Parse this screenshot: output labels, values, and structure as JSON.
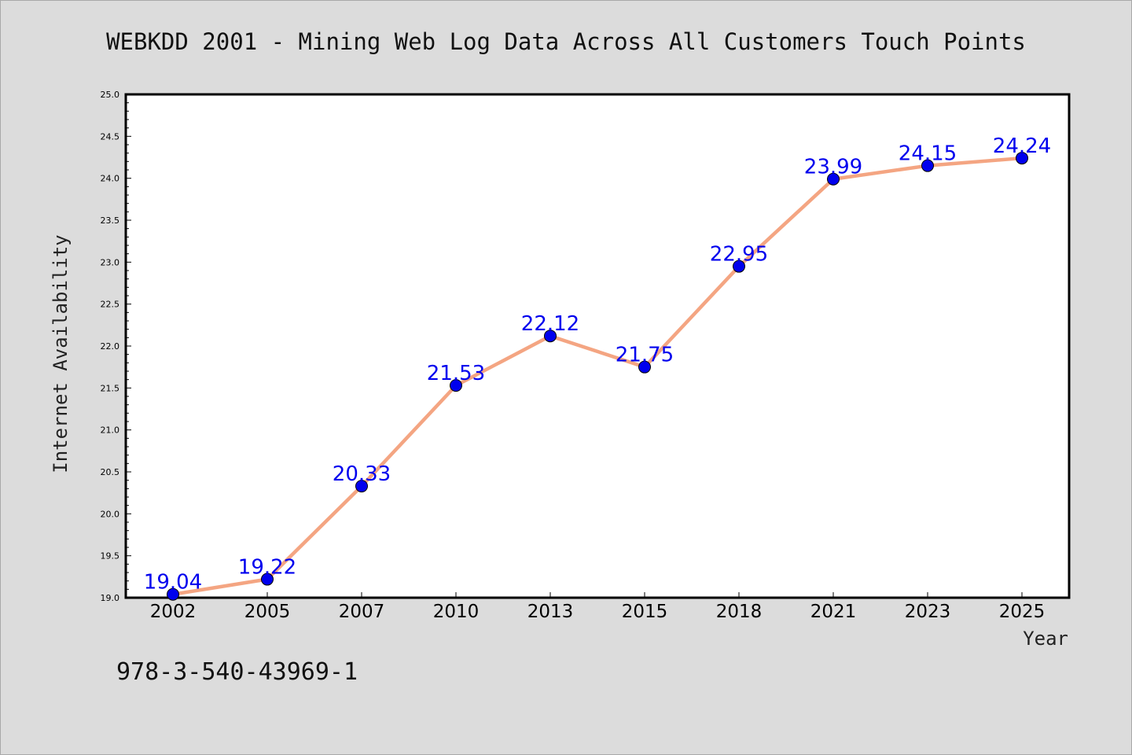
{
  "chart_data": {
    "type": "line",
    "title": "WEBKDD 2001 - Mining Web Log Data Across All Customers Touch Points",
    "xlabel": "Year",
    "ylabel": "Internet Availability",
    "categories": [
      "2002",
      "2005",
      "2007",
      "2010",
      "2013",
      "2015",
      "2018",
      "2021",
      "2023",
      "2025"
    ],
    "series": [
      {
        "values": [
          19.04,
          19.22,
          20.33,
          21.53,
          22.12,
          21.75,
          22.95,
          23.99,
          24.15,
          24.24
        ]
      }
    ],
    "data_labels": [
      "19.04",
      "19.22",
      "20.33",
      "21.53",
      "22.12",
      "21.75",
      "22.95",
      "23.99",
      "24.15",
      "24.24"
    ],
    "ylim": [
      19.0,
      25.0
    ],
    "yticks": [
      "19.0",
      "19.5",
      "20.0",
      "20.5",
      "21.0",
      "21.5",
      "22.0",
      "22.5",
      "23.0",
      "23.5",
      "24.0",
      "24.5",
      "25.0"
    ],
    "grid": false,
    "legend": "none",
    "colors": {
      "line": "#f4a582",
      "marker": "#0000ee",
      "label": "#0000ee",
      "background": "#dcdcdc",
      "plot_background": "#ffffff"
    }
  },
  "footer": {
    "text": "978-3-540-43969-1"
  }
}
